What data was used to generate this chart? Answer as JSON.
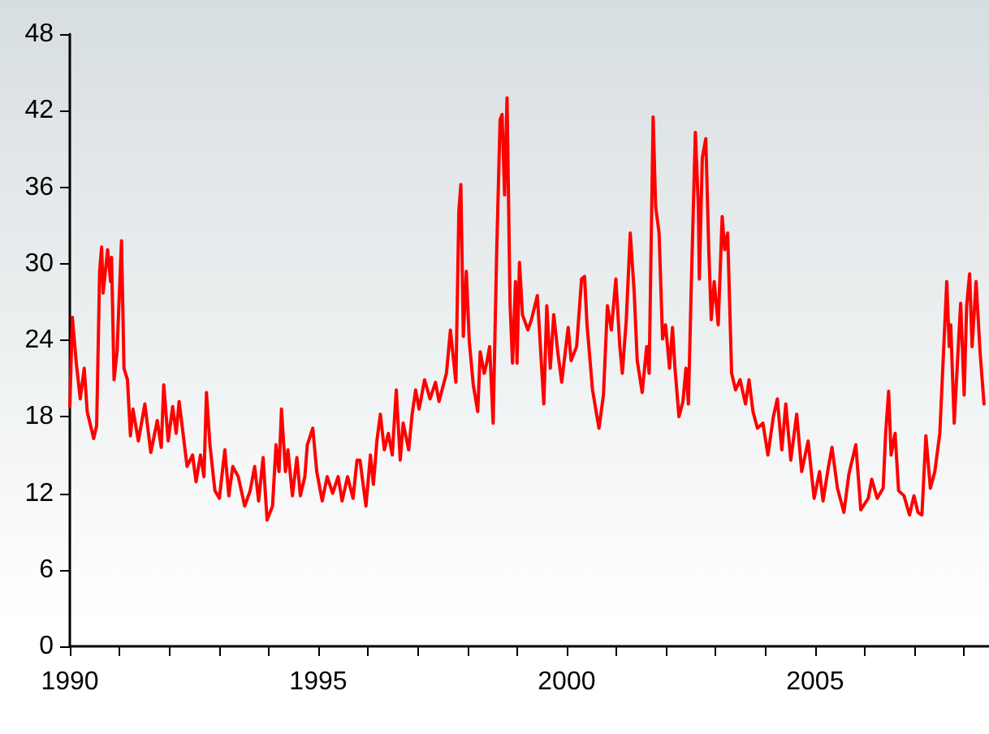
{
  "chart_data": {
    "type": "line",
    "x": [
      1990.0,
      1990.05,
      1990.13,
      1990.21,
      1990.29,
      1990.35,
      1990.48,
      1990.54,
      1990.6,
      1990.64,
      1990.67,
      1990.76,
      1990.82,
      1990.84,
      1990.89,
      1990.95,
      1991.04,
      1991.09,
      1991.16,
      1991.22,
      1991.27,
      1991.38,
      1991.51,
      1991.63,
      1991.76,
      1991.84,
      1991.89,
      1991.98,
      1992.07,
      1992.14,
      1992.2,
      1992.36,
      1992.47,
      1992.54,
      1992.63,
      1992.7,
      1992.75,
      1992.82,
      1992.92,
      1993.01,
      1993.07,
      1993.12,
      1993.2,
      1993.28,
      1993.39,
      1993.52,
      1993.63,
      1993.72,
      1993.8,
      1993.89,
      1993.97,
      1994.08,
      1994.15,
      1994.21,
      1994.26,
      1994.34,
      1994.39,
      1994.48,
      1994.57,
      1994.64,
      1994.73,
      1994.78,
      1994.89,
      1994.97,
      1995.08,
      1995.18,
      1995.29,
      1995.4,
      1995.48,
      1995.59,
      1995.7,
      1995.78,
      1995.84,
      1995.96,
      1996.05,
      1996.11,
      1996.18,
      1996.25,
      1996.33,
      1996.41,
      1996.49,
      1996.57,
      1996.65,
      1996.71,
      1996.82,
      1996.89,
      1996.96,
      1997.03,
      1997.14,
      1997.25,
      1997.36,
      1997.43,
      1997.58,
      1997.66,
      1997.77,
      1997.83,
      1997.87,
      1997.92,
      1997.98,
      1998.04,
      1998.12,
      1998.21,
      1998.26,
      1998.34,
      1998.39,
      1998.45,
      1998.52,
      1998.59,
      1998.66,
      1998.7,
      1998.75,
      1998.8,
      1998.86,
      1998.91,
      1998.97,
      1999.0,
      1999.05,
      1999.11,
      1999.22,
      1999.29,
      1999.41,
      1999.54,
      1999.6,
      1999.67,
      1999.74,
      1999.82,
      1999.9,
      2000.03,
      2000.09,
      2000.2,
      2000.3,
      2000.36,
      2000.41,
      2000.52,
      2000.65,
      2000.74,
      2000.82,
      2000.9,
      2000.99,
      2001.07,
      2001.12,
      2001.2,
      2001.28,
      2001.36,
      2001.42,
      2001.52,
      2001.61,
      2001.66,
      2001.74,
      2001.79,
      2001.86,
      2001.93,
      2001.99,
      2002.07,
      2002.13,
      2002.18,
      2002.26,
      2002.34,
      2002.4,
      2002.45,
      2002.51,
      2002.59,
      2002.65,
      2002.67,
      2002.73,
      2002.8,
      2002.86,
      2002.91,
      2002.97,
      2003.05,
      2003.13,
      2003.18,
      2003.24,
      2003.32,
      2003.4,
      2003.49,
      2003.6,
      2003.67,
      2003.75,
      2003.84,
      2003.95,
      2004.05,
      2004.16,
      2004.24,
      2004.33,
      2004.41,
      2004.51,
      2004.63,
      2004.73,
      2004.86,
      2004.98,
      2005.09,
      2005.16,
      2005.27,
      2005.34,
      2005.45,
      2005.58,
      2005.68,
      2005.82,
      2005.92,
      2006.07,
      2006.14,
      2006.25,
      2006.37,
      2006.42,
      2006.48,
      2006.53,
      2006.61,
      2006.68,
      2006.79,
      2006.9,
      2006.99,
      2007.07,
      2007.15,
      2007.23,
      2007.32,
      2007.41,
      2007.51,
      2007.59,
      2007.65,
      2007.7,
      2007.73,
      2007.8,
      2007.89,
      2007.93,
      2008.0,
      2008.05,
      2008.11,
      2008.16,
      2008.24,
      2008.32,
      2008.4
    ],
    "series": [
      {
        "color": "#ff0000",
        "values": [
          18.8,
          25.8,
          22.2,
          19.4,
          21.8,
          18.4,
          16.3,
          17.3,
          29.4,
          31.3,
          27.7,
          31.1,
          28.6,
          30.5,
          20.9,
          23.1,
          31.8,
          21.8,
          20.9,
          16.5,
          18.6,
          16.1,
          19.0,
          15.2,
          17.7,
          15.6,
          20.5,
          16.1,
          18.8,
          16.7,
          19.2,
          14.1,
          15.0,
          12.9,
          15.0,
          13.3,
          19.9,
          15.8,
          12.2,
          11.6,
          13.7,
          15.4,
          11.8,
          14.1,
          13.3,
          11.0,
          12.2,
          14.1,
          11.4,
          14.8,
          9.9,
          11.0,
          15.8,
          13.7,
          18.6,
          13.7,
          15.4,
          11.8,
          14.8,
          11.8,
          13.3,
          15.8,
          17.1,
          13.7,
          11.4,
          13.3,
          12.0,
          13.3,
          11.4,
          13.3,
          11.6,
          14.6,
          14.6,
          11.0,
          15.0,
          12.7,
          16.1,
          18.2,
          15.4,
          16.7,
          15.0,
          20.1,
          14.6,
          17.5,
          15.4,
          18.2,
          20.1,
          18.6,
          20.9,
          19.4,
          20.7,
          19.2,
          21.4,
          24.8,
          20.7,
          34.1,
          36.2,
          24.3,
          29.4,
          23.9,
          20.5,
          18.4,
          23.1,
          21.4,
          22.2,
          23.5,
          17.5,
          30.7,
          41.3,
          41.7,
          35.4,
          43.0,
          26.9,
          22.2,
          28.6,
          22.2,
          30.1,
          26.0,
          24.8,
          25.6,
          27.5,
          19.0,
          26.7,
          21.8,
          26.0,
          23.1,
          20.7,
          25.0,
          22.4,
          23.5,
          28.8,
          29.0,
          25.2,
          20.1,
          17.1,
          19.7,
          26.7,
          24.8,
          28.8,
          23.5,
          21.4,
          25.6,
          32.4,
          27.7,
          22.4,
          19.9,
          23.5,
          21.4,
          41.5,
          34.5,
          32.4,
          24.1,
          25.2,
          21.8,
          25.0,
          21.8,
          18.0,
          19.2,
          21.8,
          19.0,
          28.6,
          40.3,
          34.5,
          28.8,
          38.3,
          39.8,
          31.1,
          25.6,
          28.6,
          25.2,
          33.7,
          31.1,
          32.4,
          21.4,
          20.1,
          20.9,
          19.0,
          20.9,
          18.4,
          17.1,
          17.5,
          15.0,
          18.0,
          19.4,
          15.4,
          19.0,
          14.6,
          18.2,
          13.7,
          16.1,
          11.6,
          13.7,
          11.4,
          14.1,
          15.6,
          12.4,
          10.5,
          13.5,
          15.8,
          10.7,
          11.6,
          13.1,
          11.6,
          12.4,
          16.7,
          20.0,
          15.0,
          16.7,
          12.2,
          11.8,
          10.3,
          11.8,
          10.5,
          10.3,
          16.5,
          12.4,
          13.7,
          16.7,
          23.5,
          28.6,
          23.5,
          25.2,
          17.5,
          24.1,
          26.9,
          19.7,
          26.7,
          29.2,
          23.5,
          28.6,
          23.1,
          19.0
        ]
      }
    ],
    "xlim": [
      1990,
      2008.5
    ],
    "xticks": [
      1990,
      {
        "value": 1991,
        "label": null
      },
      {
        "value": 1992,
        "label": null
      },
      {
        "value": 1993,
        "label": null
      },
      {
        "value": 1994,
        "label": null
      },
      1995,
      {
        "value": 1996,
        "label": null
      },
      {
        "value": 1997,
        "label": null
      },
      {
        "value": 1998,
        "label": null
      },
      {
        "value": 1999,
        "label": null
      },
      2000,
      {
        "value": 2001,
        "label": null
      },
      {
        "value": 2002,
        "label": null
      },
      {
        "value": 2003,
        "label": null
      },
      {
        "value": 2004,
        "label": null
      },
      2005,
      {
        "value": 2006,
        "label": null
      },
      {
        "value": 2007,
        "label": null
      },
      {
        "value": 2008,
        "label": null
      }
    ],
    "ylim": [
      0,
      48
    ],
    "yticks": [
      0,
      6,
      12,
      18,
      24,
      30,
      36,
      42,
      48
    ],
    "grid": false,
    "marker": "none",
    "line_style": "solid"
  }
}
